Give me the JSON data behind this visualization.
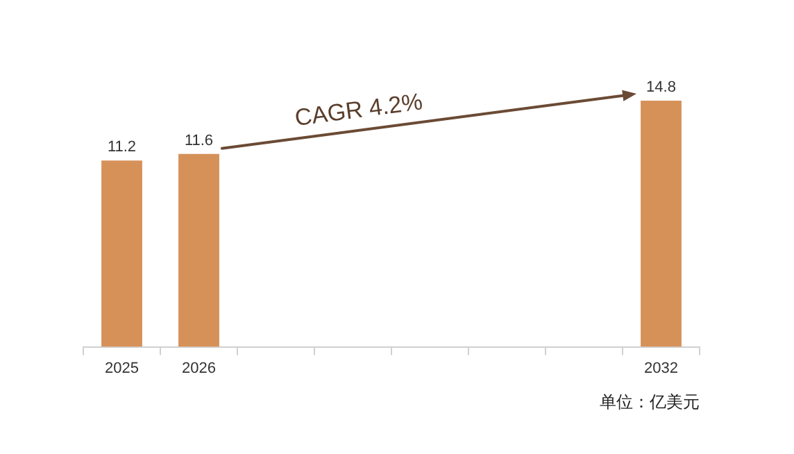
{
  "chart_data": {
    "type": "bar",
    "categories": [
      "2025",
      "2026",
      null,
      null,
      null,
      null,
      null,
      "2032"
    ],
    "values": [
      11.2,
      11.6,
      null,
      null,
      null,
      null,
      null,
      14.8
    ],
    "color": "#d69159",
    "data_labels": true,
    "grid": false,
    "legend": false,
    "annotations": [
      "CAGR 4.2%",
      "单位：亿美元"
    ]
  }
}
